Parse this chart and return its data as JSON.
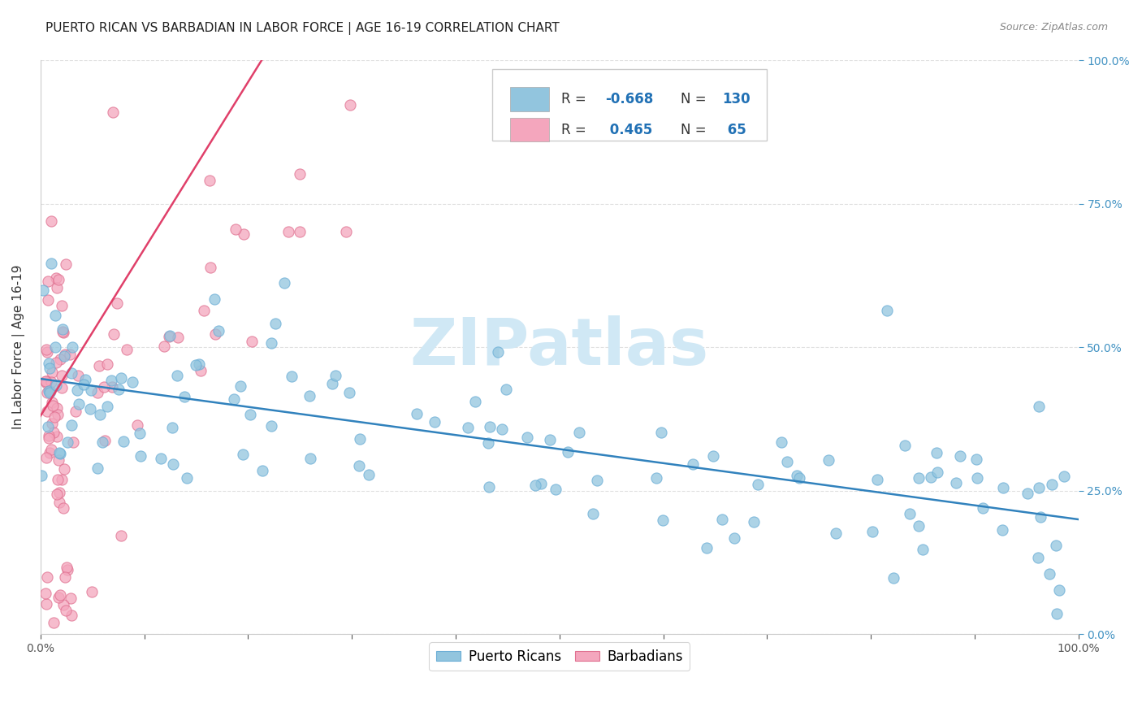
{
  "title": "PUERTO RICAN VS BARBADIAN IN LABOR FORCE | AGE 16-19 CORRELATION CHART",
  "source": "Source: ZipAtlas.com",
  "ylabel": "In Labor Force | Age 16-19",
  "xlim": [
    0.0,
    1.0
  ],
  "ylim": [
    0.0,
    1.0
  ],
  "xtick_vals": [
    0.0,
    0.1,
    0.2,
    0.3,
    0.4,
    0.5,
    0.6,
    0.7,
    0.8,
    0.9,
    1.0
  ],
  "xtick_labels_show": {
    "0.0": "0.0%",
    "1.0": "100.0%"
  },
  "ytick_vals": [
    0.0,
    0.25,
    0.5,
    0.75,
    1.0
  ],
  "ytick_right_labels": [
    "0.0%",
    "25.0%",
    "50.0%",
    "75.0%",
    "100.0%"
  ],
  "blue_color": "#92c5de",
  "blue_edge_color": "#6baed6",
  "pink_color": "#f4a6bd",
  "pink_edge_color": "#e07090",
  "blue_line_color": "#3182bd",
  "pink_line_color": "#e0406a",
  "legend_text_color": "#2171b5",
  "right_tick_color": "#4393c3",
  "watermark_color": "#d0e8f5",
  "R_blue": "-0.668",
  "N_blue": "130",
  "R_pink": "0.465",
  "N_pink": "65",
  "blue_line_x0": 0.0,
  "blue_line_y0": 0.445,
  "blue_line_x1": 1.0,
  "blue_line_y1": 0.2,
  "pink_line_x0": 0.0,
  "pink_line_y0": 0.38,
  "pink_line_x1": 0.22,
  "pink_line_y1": 1.02,
  "background_color": "#ffffff",
  "grid_color": "#e0e0e0",
  "grid_style": "--",
  "title_fontsize": 11,
  "axis_label_fontsize": 11,
  "tick_fontsize": 10,
  "legend_fontsize": 12
}
